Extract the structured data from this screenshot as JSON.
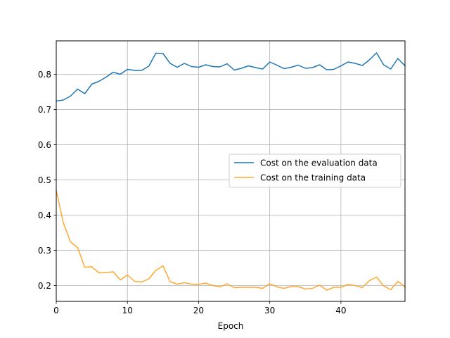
{
  "chart_data": {
    "type": "line",
    "title": "",
    "xlabel": "Epoch",
    "ylabel": "",
    "xlim": [
      0,
      49
    ],
    "ylim": [
      0.155,
      0.895
    ],
    "x_ticks": [
      0,
      10,
      20,
      30,
      40
    ],
    "y_ticks": [
      0.2,
      0.3,
      0.4,
      0.5,
      0.6,
      0.7,
      0.8
    ],
    "grid": true,
    "legend_position": "center-right",
    "x": [
      0,
      1,
      2,
      3,
      4,
      5,
      6,
      7,
      8,
      9,
      10,
      11,
      12,
      13,
      14,
      15,
      16,
      17,
      18,
      19,
      20,
      21,
      22,
      23,
      24,
      25,
      26,
      27,
      28,
      29,
      30,
      31,
      32,
      33,
      34,
      35,
      36,
      37,
      38,
      39,
      40,
      41,
      42,
      43,
      44,
      45,
      46,
      47,
      48,
      49
    ],
    "series": [
      {
        "name": "Cost on the evaluation data",
        "color": "#1f77b4",
        "values": [
          0.724,
          0.727,
          0.738,
          0.758,
          0.745,
          0.772,
          0.78,
          0.792,
          0.806,
          0.8,
          0.814,
          0.811,
          0.811,
          0.823,
          0.86,
          0.859,
          0.831,
          0.82,
          0.831,
          0.822,
          0.82,
          0.827,
          0.822,
          0.821,
          0.83,
          0.812,
          0.817,
          0.824,
          0.819,
          0.815,
          0.835,
          0.826,
          0.816,
          0.82,
          0.826,
          0.817,
          0.819,
          0.827,
          0.813,
          0.814,
          0.824,
          0.835,
          0.831,
          0.825,
          0.841,
          0.861,
          0.827,
          0.815,
          0.845,
          0.824
        ]
      },
      {
        "name": "Cost on the training data",
        "color": "#ffa733",
        "values": [
          0.47,
          0.378,
          0.324,
          0.308,
          0.252,
          0.253,
          0.236,
          0.237,
          0.239,
          0.216,
          0.23,
          0.212,
          0.21,
          0.219,
          0.243,
          0.256,
          0.211,
          0.204,
          0.208,
          0.204,
          0.203,
          0.207,
          0.2,
          0.196,
          0.205,
          0.194,
          0.195,
          0.195,
          0.195,
          0.192,
          0.205,
          0.196,
          0.192,
          0.197,
          0.197,
          0.19,
          0.192,
          0.201,
          0.187,
          0.195,
          0.195,
          0.203,
          0.2,
          0.194,
          0.214,
          0.224,
          0.199,
          0.188,
          0.212,
          0.196
        ]
      }
    ]
  }
}
